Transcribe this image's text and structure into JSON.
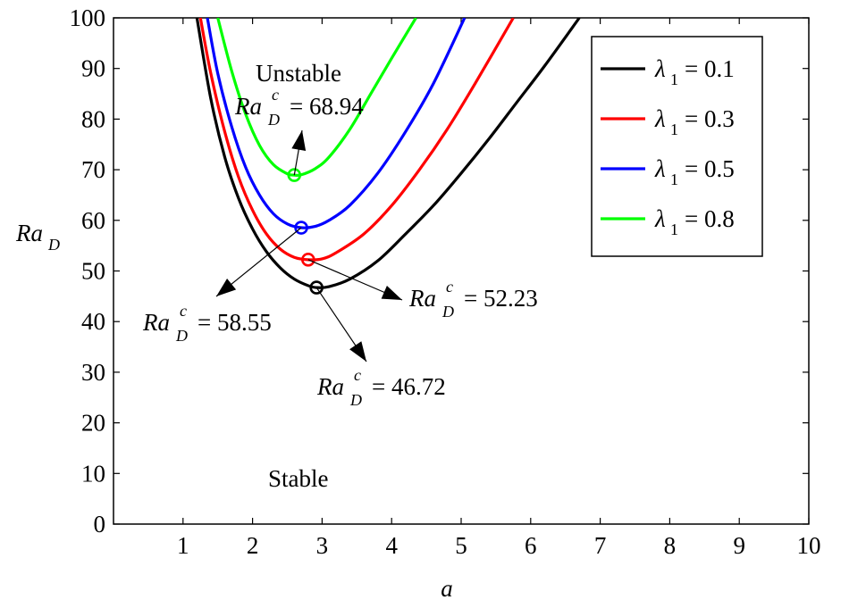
{
  "chart_data": {
    "type": "line",
    "xlabel": "a",
    "ylabel": {
      "main": "Ra",
      "sub": "D"
    },
    "xlim": [
      0,
      10
    ],
    "ylim": [
      0,
      100
    ],
    "xticks": [
      "1",
      "2",
      "3",
      "4",
      "5",
      "6",
      "7",
      "8",
      "9",
      "10"
    ],
    "yticks": [
      "0",
      "10",
      "20",
      "30",
      "40",
      "50",
      "60",
      "70",
      "80",
      "90",
      "100"
    ],
    "grid": false,
    "legend_position": "top-right",
    "series": [
      {
        "name": "λ1 = 0.1",
        "legend_value": "0.1",
        "color": "#000000",
        "x": [
          1.2,
          1.4,
          1.6,
          1.8,
          2.0,
          2.2,
          2.4,
          2.6,
          2.8,
          2.92,
          3.1,
          3.4,
          3.8,
          4.2,
          4.6,
          5.0,
          5.4,
          5.8,
          6.2,
          6.7
        ],
        "y": [
          100,
          84,
          72.5,
          64.3,
          58.3,
          53.8,
          50.6,
          48.4,
          47.1,
          46.72,
          46.9,
          48.4,
          52.0,
          57.3,
          62.9,
          69.3,
          76.1,
          83.3,
          90.5,
          100
        ]
      },
      {
        "name": "λ1 = 0.3",
        "legend_value": "0.3",
        "color": "#ff0000",
        "x": [
          1.25,
          1.4,
          1.6,
          1.8,
          2.0,
          2.2,
          2.4,
          2.6,
          2.8,
          3.0,
          3.2,
          3.6,
          4.0,
          4.4,
          4.8,
          5.2,
          5.75
        ],
        "y": [
          100,
          89,
          77.5,
          68.5,
          62.0,
          57.3,
          54.3,
          52.7,
          52.23,
          52.4,
          53.6,
          57.3,
          62.9,
          70.0,
          78.0,
          87.0,
          100
        ]
      },
      {
        "name": "λ1 = 0.5",
        "legend_value": "0.5",
        "color": "#0000ff",
        "x": [
          1.35,
          1.5,
          1.7,
          1.9,
          2.1,
          2.3,
          2.5,
          2.7,
          2.9,
          3.1,
          3.4,
          3.8,
          4.2,
          4.6,
          5.05
        ],
        "y": [
          100,
          89,
          78.5,
          70.5,
          65.0,
          61.3,
          59.3,
          58.55,
          58.8,
          60.0,
          63.0,
          69.3,
          77.5,
          87.0,
          100
        ]
      },
      {
        "name": "λ1 = 0.8",
        "legend_value": "0.8",
        "color": "#00ff00",
        "x": [
          1.5,
          1.7,
          1.9,
          2.1,
          2.3,
          2.5,
          2.6,
          2.7,
          2.9,
          3.1,
          3.4,
          3.7,
          4.0,
          4.35
        ],
        "y": [
          100,
          89.5,
          81.0,
          74.8,
          71.0,
          69.2,
          68.94,
          69.0,
          70.2,
          72.5,
          78.0,
          85.0,
          92.0,
          100
        ]
      }
    ],
    "critical_points": [
      {
        "x": 2.92,
        "y": 46.72,
        "color": "#000000",
        "value": "46.72"
      },
      {
        "x": 2.8,
        "y": 52.23,
        "color": "#ff0000",
        "value": "52.23"
      },
      {
        "x": 2.7,
        "y": 58.55,
        "color": "#0000ff",
        "value": "58.55"
      },
      {
        "x": 2.6,
        "y": 68.94,
        "color": "#00ff00",
        "value": "68.94"
      }
    ],
    "annotations": {
      "unstable": "Unstable",
      "stable": "Stable",
      "label_main": "Ra",
      "label_sub": "D",
      "label_sup": "c",
      "legend_symbol": "λ",
      "legend_sub": "1"
    }
  }
}
